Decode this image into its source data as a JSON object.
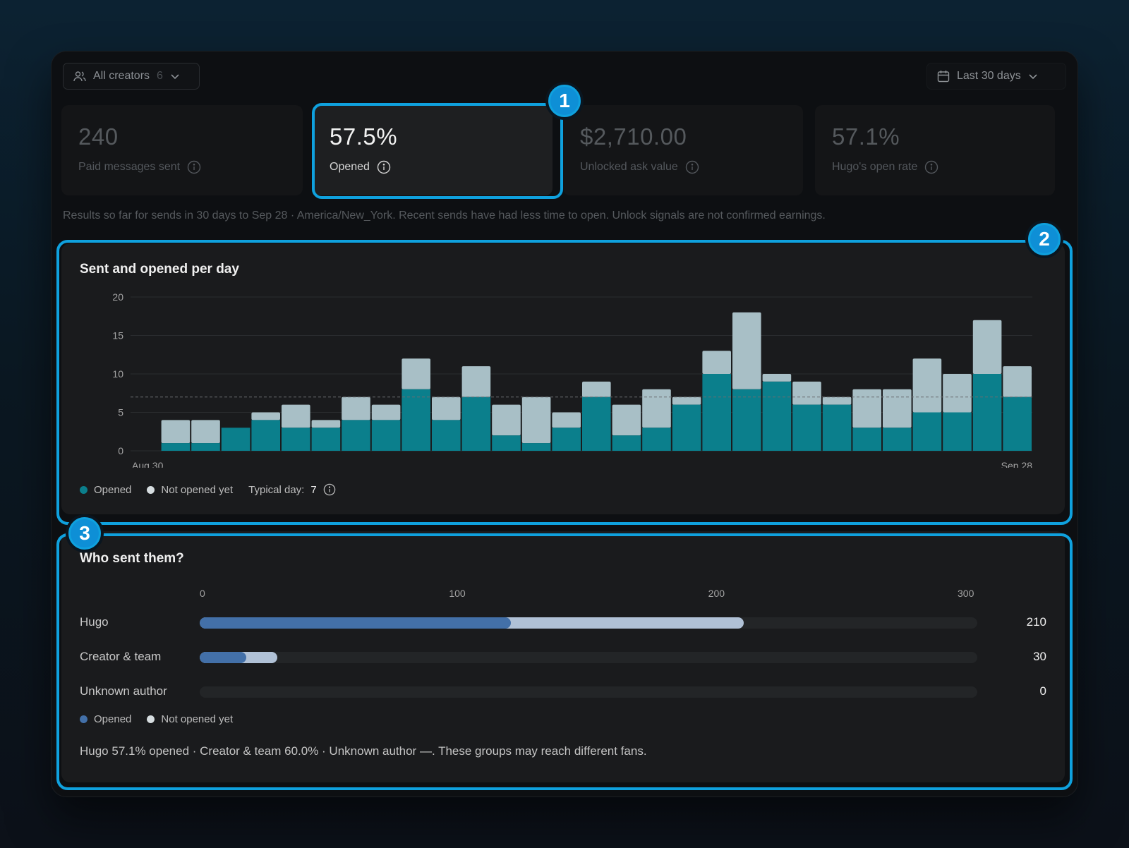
{
  "filters": {
    "creators_label": "All creators",
    "creators_count": "6",
    "range_label": "Last 30 days"
  },
  "stats": [
    {
      "value": "240",
      "label": "Paid messages sent"
    },
    {
      "value": "57.5%",
      "label": "Opened"
    },
    {
      "value": "$2,710.00",
      "label": "Unlocked ask value"
    },
    {
      "value": "57.1%",
      "label": "Hugo's open rate"
    }
  ],
  "note": "Results so far for sends in 30 days to Sep 28 · America/New_York. Recent sends have had less time to open. Unlock signals are not confirmed earnings.",
  "daily_card": {
    "title": "Sent and opened per day",
    "legend_opened": "Opened",
    "legend_not_opened": "Not opened yet",
    "typical_label": "Typical day:",
    "typical_value": "7"
  },
  "who_card": {
    "title": "Who sent them?",
    "axis": [
      "0",
      "100",
      "200",
      "300"
    ],
    "rows": [
      {
        "label": "Hugo",
        "total": "210"
      },
      {
        "label": "Creator & team",
        "total": "30"
      },
      {
        "label": "Unknown author",
        "total": "0"
      }
    ],
    "legend_opened": "Opened",
    "legend_not_opened": "Not opened yet",
    "summary": "Hugo 57.1% opened · Creator & team 60.0% · Unknown author —. These groups may reach different fans."
  },
  "badges": [
    "1",
    "2",
    "3"
  ],
  "colors": {
    "opened": "#0b7f8c",
    "not_opened": "#a8bfc6",
    "author_opened": "#4370a8",
    "author_not_opened": "#b0c1d6",
    "highlight": "#0fa1de"
  },
  "chart_data": [
    {
      "type": "bar",
      "stacked": true,
      "x_start_label": "Aug 30",
      "x_end_label": "Sep 28",
      "ylim": [
        0,
        20
      ],
      "yticks": [
        0,
        5,
        10,
        15,
        20
      ],
      "reference_line": 7,
      "series": [
        {
          "name": "Opened",
          "values": [
            0,
            1,
            1,
            3,
            4,
            3,
            3,
            4,
            4,
            8,
            4,
            7,
            2,
            1,
            3,
            7,
            2,
            3,
            6,
            10,
            8,
            9,
            6,
            6,
            3,
            3,
            5,
            5,
            10,
            7
          ]
        },
        {
          "name": "Not opened yet",
          "values": [
            0,
            3,
            3,
            0,
            1,
            3,
            1,
            3,
            2,
            4,
            3,
            4,
            4,
            6,
            2,
            2,
            4,
            5,
            1,
            3,
            10,
            1,
            3,
            1,
            5,
            5,
            7,
            5,
            7,
            4
          ]
        }
      ]
    },
    {
      "type": "bar",
      "orientation": "horizontal",
      "stacked": true,
      "categories": [
        "Hugo",
        "Creator & team",
        "Unknown author"
      ],
      "xlim": [
        0,
        300
      ],
      "series": [
        {
          "name": "Opened",
          "values": [
            120,
            18,
            0
          ]
        },
        {
          "name": "Not opened yet",
          "values": [
            90,
            12,
            0
          ]
        }
      ]
    }
  ]
}
